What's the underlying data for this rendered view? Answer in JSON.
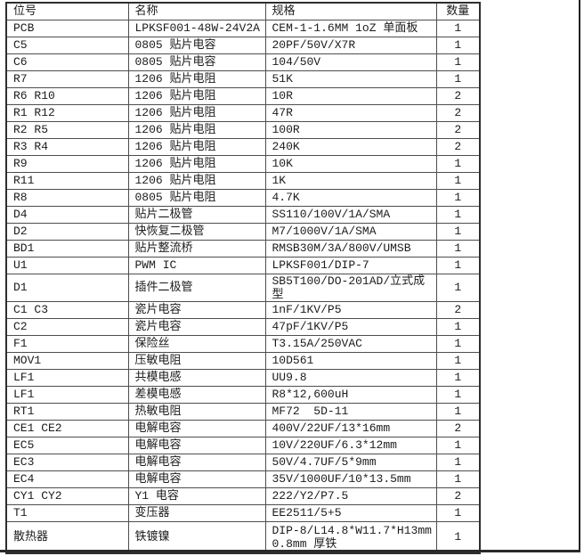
{
  "table": {
    "headers": [
      "位号",
      "名称",
      "规格",
      "数量"
    ],
    "rows": [
      {
        "pos": "PCB",
        "name": "LPKSF001-48W-24V2A",
        "spec": "CEM-1-1.6MM 1oZ 单面板",
        "qty": "1"
      },
      {
        "pos": "C5",
        "name": "0805 贴片电容",
        "spec": "20PF/50V/X7R",
        "qty": "1"
      },
      {
        "pos": "C6",
        "name": "0805 贴片电容",
        "spec": "104/50V",
        "qty": "1"
      },
      {
        "pos": "R7",
        "name": "1206 贴片电阻",
        "spec": "51K",
        "qty": "1"
      },
      {
        "pos": "R6 R10",
        "name": "1206 贴片电阻",
        "spec": "10R",
        "qty": "2"
      },
      {
        "pos": "R1 R12",
        "name": "1206 贴片电阻",
        "spec": "47R",
        "qty": "2"
      },
      {
        "pos": "R2 R5",
        "name": "1206 贴片电阻",
        "spec": "100R",
        "qty": "2"
      },
      {
        "pos": "R3 R4",
        "name": "1206 贴片电阻",
        "spec": "240K",
        "qty": "2"
      },
      {
        "pos": "R9",
        "name": "1206 贴片电阻",
        "spec": "10K",
        "qty": "1"
      },
      {
        "pos": "R11",
        "name": "1206 贴片电阻",
        "spec": "1K",
        "qty": "1"
      },
      {
        "pos": "R8",
        "name": "0805 贴片电阻",
        "spec": "4.7K",
        "qty": "1"
      },
      {
        "pos": "D4",
        "name": "贴片二极管",
        "spec": "SS110/100V/1A/SMA",
        "qty": "1"
      },
      {
        "pos": "D2",
        "name": "快恢复二极管",
        "spec": "M7/1000V/1A/SMA",
        "qty": "1"
      },
      {
        "pos": "BD1",
        "name": "贴片整流桥",
        "spec": "RMSB30M/3A/800V/UMSB",
        "qty": "1"
      },
      {
        "pos": "U1",
        "name": "PWM IC",
        "spec": "LPKSF001/DIP-7",
        "qty": "1"
      },
      {
        "pos": "D1",
        "name": "插件二极管",
        "spec": "SB5T100/DO-201AD/立式成型",
        "qty": "1"
      },
      {
        "pos": "C1 C3",
        "name": "瓷片电容",
        "spec": "1nF/1KV/P5",
        "qty": "2"
      },
      {
        "pos": "C2",
        "name": "瓷片电容",
        "spec": "47pF/1KV/P5",
        "qty": "1"
      },
      {
        "pos": "F1",
        "name": "保险丝",
        "spec": "T3.15A/250VAC",
        "qty": "1"
      },
      {
        "pos": "MOV1",
        "name": "压敏电阻",
        "spec": "10D561",
        "qty": "1"
      },
      {
        "pos": "LF1",
        "name": "共模电感",
        "spec": "UU9.8",
        "qty": "1"
      },
      {
        "pos": "LF1",
        "name": "差模电感",
        "spec": "R8*12,600uH",
        "qty": "1"
      },
      {
        "pos": "RT1",
        "name": "热敏电阻",
        "spec": "MF72  5D-11",
        "qty": "1"
      },
      {
        "pos": "CE1 CE2",
        "name": "电解电容",
        "spec": "400V/22UF/13*16mm",
        "qty": "2"
      },
      {
        "pos": "EC5",
        "name": "电解电容",
        "spec": "10V/220UF/6.3*12mm",
        "qty": "1"
      },
      {
        "pos": "EC3",
        "name": "电解电容",
        "spec": "50V/4.7UF/5*9mm",
        "qty": "1"
      },
      {
        "pos": "EC4",
        "name": "电解电容",
        "spec": "35V/1000UF/10*13.5mm",
        "qty": "1"
      },
      {
        "pos": "CY1 CY2",
        "name": "Y1 电容",
        "spec": "222/Y2/P7.5",
        "qty": "2"
      },
      {
        "pos": "T1",
        "name": "变压器",
        "spec": "EE2511/5+5",
        "qty": "1"
      },
      {
        "pos": "散热器",
        "name": "铁镀镍",
        "spec": "DIP-8/L14.8*W11.7*H13mm\n0.8mm 厚铁",
        "qty": "1"
      }
    ]
  },
  "colors": {
    "border_inner": "#4e4e4e",
    "border_outer": "#2e2e2e",
    "text": "#1c1c1c",
    "page_edge": "#222222",
    "background": "#ffffff"
  }
}
